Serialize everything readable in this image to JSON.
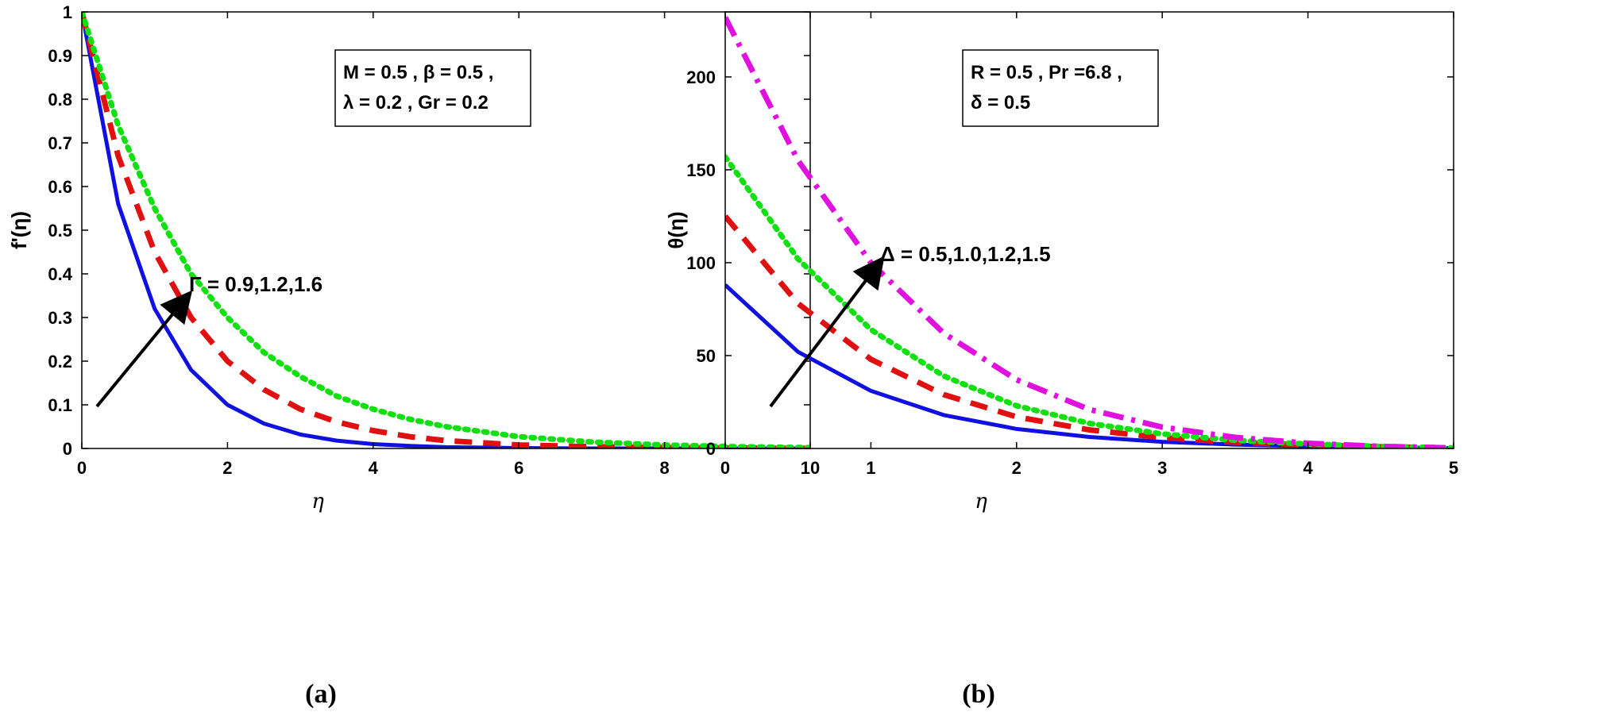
{
  "chart_data": [
    {
      "type": "line",
      "panel_label": "(a)",
      "xlabel": "η",
      "ylabel": "f'(η)",
      "xlim": [
        0,
        10
      ],
      "ylim": [
        0,
        1
      ],
      "xticks": [
        0,
        2,
        4,
        6,
        8,
        10
      ],
      "yticks": [
        0,
        0.1,
        0.2,
        0.3,
        0.4,
        0.5,
        0.6,
        0.7,
        0.8,
        0.9,
        1
      ],
      "grid": false,
      "x": [
        0,
        0.5,
        1,
        1.5,
        2,
        2.5,
        3,
        3.5,
        4,
        4.5,
        5,
        6,
        7,
        8,
        9,
        10
      ],
      "series": [
        {
          "color": "#1010e0",
          "style": "solid",
          "values": [
            1.0,
            0.56,
            0.32,
            0.18,
            0.1,
            0.057,
            0.032,
            0.018,
            0.01,
            0.006,
            0.003,
            0.001,
            0,
            0,
            0,
            0
          ]
        },
        {
          "color": "#e01010",
          "style": "dashed",
          "values": [
            1.0,
            0.67,
            0.45,
            0.3,
            0.2,
            0.135,
            0.09,
            0.061,
            0.041,
            0.027,
            0.018,
            0.008,
            0.004,
            0.002,
            0.001,
            0
          ]
        },
        {
          "color": "#10e010",
          "style": "dotted",
          "values": [
            1.0,
            0.74,
            0.55,
            0.4,
            0.3,
            0.22,
            0.165,
            0.12,
            0.09,
            0.067,
            0.05,
            0.027,
            0.015,
            0.008,
            0.004,
            0.002
          ]
        }
      ],
      "info_box": [
        "M = 0.5 , β = 0.5 ,",
        "λ = 0.2 , Gr = 0.2"
      ],
      "arrow_label": "Γ = 0.9,1.2,1.6"
    },
    {
      "type": "line",
      "panel_label": "(b)",
      "xlabel": "η",
      "ylabel": "θ(η)",
      "xlim": [
        0,
        5
      ],
      "ylim": [
        0,
        235
      ],
      "xticks": [
        0,
        1,
        2,
        3,
        4,
        5
      ],
      "yticks": [
        0,
        50,
        100,
        150,
        200
      ],
      "grid": false,
      "x": [
        0,
        0.5,
        1,
        1.5,
        2,
        2.5,
        3,
        3.5,
        4,
        4.5,
        5
      ],
      "series": [
        {
          "color": "#1010e0",
          "style": "solid",
          "values": [
            88,
            52,
            31,
            18,
            10.5,
            6.2,
            3.6,
            2.1,
            1.2,
            0.6,
            0.2
          ]
        },
        {
          "color": "#e01010",
          "style": "dashed",
          "values": [
            125,
            78,
            48,
            29,
            17,
            10,
            5.8,
            3.3,
            1.8,
            0.9,
            0.3
          ]
        },
        {
          "color": "#10e010",
          "style": "dotted",
          "values": [
            157,
            102,
            64,
            39,
            23,
            13.5,
            7.8,
            4.4,
            2.4,
            1.1,
            0.3
          ]
        },
        {
          "color": "#e010e0",
          "style": "dashdot",
          "values": [
            232,
            155,
            100,
            62,
            37,
            21,
            11.5,
            6,
            2.8,
            1.1,
            0.3
          ]
        }
      ],
      "info_box": [
        "R = 0.5 , Pr =6.8 ,",
        "δ = 0.5"
      ],
      "arrow_label": "Δ = 0.5,1.0,1.2,1.5"
    }
  ]
}
